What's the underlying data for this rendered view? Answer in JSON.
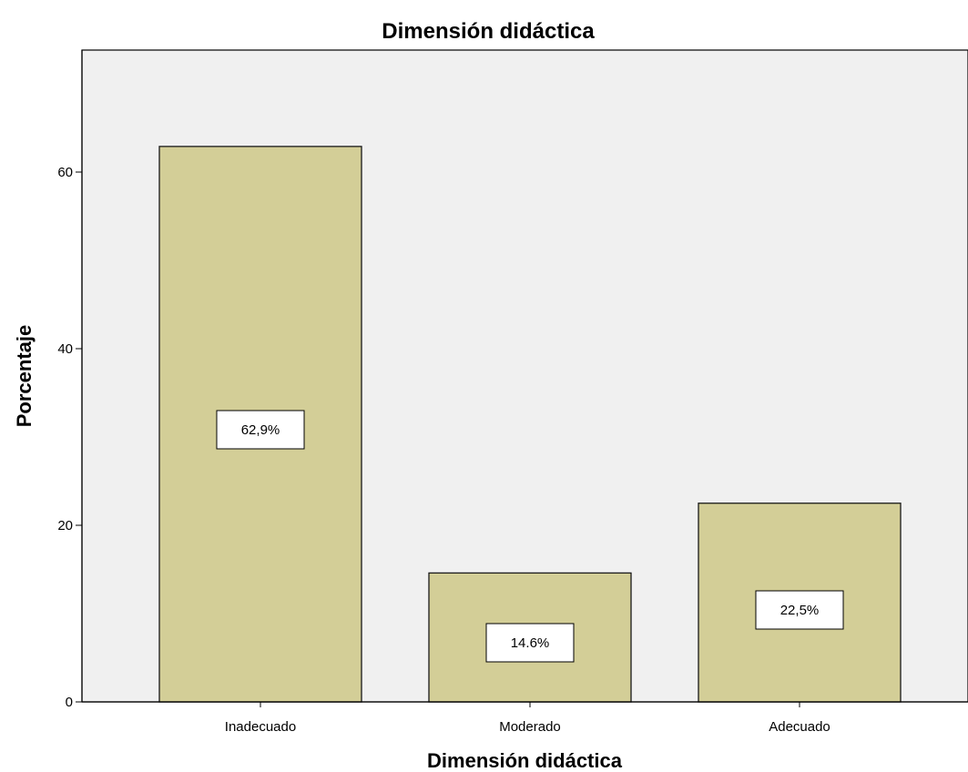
{
  "chart_data": {
    "type": "bar",
    "title": "Dimensión didáctica",
    "xlabel": "Dimensión didáctica",
    "ylabel": "Porcentaje",
    "categories": [
      "Inadecuado",
      "Moderado",
      "Adecuado"
    ],
    "values": [
      62.9,
      14.6,
      22.5
    ],
    "data_labels": [
      "62,9%",
      "14.6%",
      "22,5%"
    ],
    "ylim": [
      0,
      72
    ],
    "yticks": [
      0,
      20,
      40,
      60
    ],
    "ytick_labels": [
      "0",
      "20",
      "40",
      "60"
    ],
    "grid": false,
    "colors": {
      "plot_background": "#f0f0f0",
      "bar_fill": "#d3ce97",
      "bar_stroke": "#1a1a1a",
      "label_box_fill": "#ffffff"
    }
  }
}
